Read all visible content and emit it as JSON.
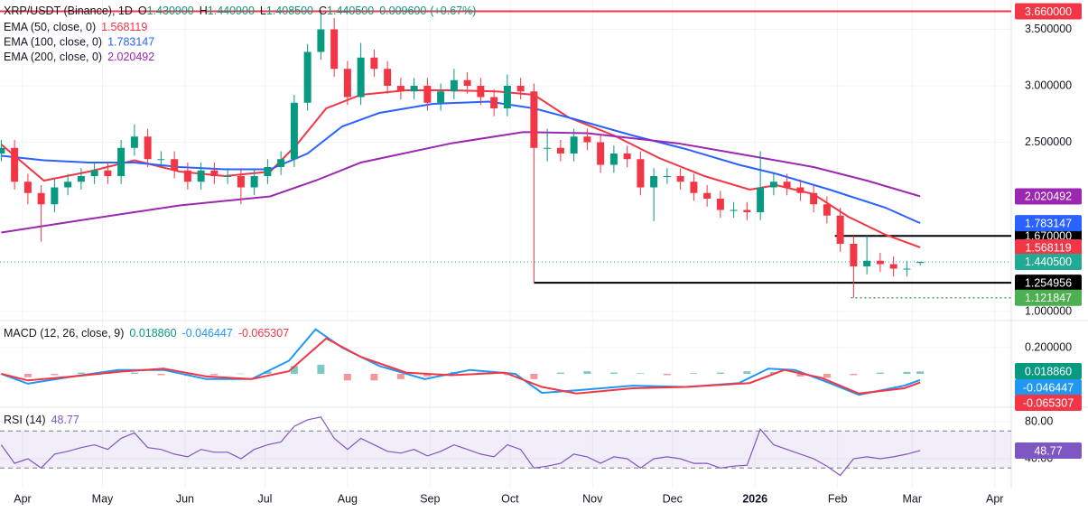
{
  "chart_data": {
    "type": "candlestick",
    "symbol": "XRP/USDT (Binance), 1D",
    "ohlc": [
      {
        "key": "O",
        "value": {
          "value": 1.4309,
          "label": "1.430900"
        }
      },
      {
        "key": "H",
        "value": {
          "value": 1.4409,
          "label": "1.440900"
        }
      },
      {
        "key": "L",
        "value": {
          "value": 1.4085,
          "label": "1.408500"
        }
      },
      {
        "key": "C",
        "value": {
          "value": 1.4405,
          "label": "1.440500"
        }
      }
    ],
    "change": {
      "value": 0.0096,
      "label": "0.009600"
    },
    "change_pct": {
      "value": 0.67,
      "label": "(+0.67%)"
    },
    "up_color": "#089981",
    "down_color": "#f23645",
    "xlim": [
      -8.47,
      369.5
    ],
    "xticks": [
      {
        "value": 0,
        "label": "Apr"
      },
      {
        "value": 30,
        "label": "May"
      },
      {
        "value": 61,
        "label": "Jun"
      },
      {
        "value": 91,
        "label": "Jul"
      },
      {
        "value": 122,
        "label": "Aug"
      },
      {
        "value": 153,
        "label": "Sep"
      },
      {
        "value": 183,
        "label": "Oct"
      },
      {
        "value": 214,
        "label": "Nov"
      },
      {
        "value": 244,
        "label": "Dec"
      },
      {
        "value": 275,
        "label": "2026",
        "bold": true
      },
      {
        "value": 306,
        "label": "Feb"
      },
      {
        "value": 334,
        "label": "Mar"
      },
      {
        "value": 365,
        "label": "Apr"
      }
    ],
    "ylim": [
      0.92,
      3.76
    ],
    "yticks": [
      {
        "value": 1.0,
        "label": "1.000000"
      },
      {
        "value": 2.5,
        "label": "2.500000"
      },
      {
        "value": 3.0,
        "label": "3.000000"
      },
      {
        "value": 3.5,
        "label": "3.500000"
      }
    ],
    "grid": true,
    "x": [
      -8,
      -3,
      2,
      7,
      12,
      17,
      22,
      27,
      32,
      37,
      42,
      47,
      52,
      57,
      62,
      67,
      72,
      77,
      82,
      87,
      92,
      97,
      102,
      107,
      112,
      117,
      122,
      127,
      132,
      137,
      142,
      147,
      152,
      157,
      162,
      167,
      172,
      177,
      182,
      187,
      192,
      197,
      202,
      207,
      212,
      217,
      222,
      227,
      232,
      237,
      242,
      247,
      252,
      257,
      262,
      267,
      272,
      277,
      282,
      287,
      292,
      297,
      302,
      307,
      312,
      317,
      322,
      327,
      332,
      337
    ],
    "open": [
      2.4,
      2.45,
      2.15,
      2.05,
      1.95,
      2.1,
      2.15,
      2.2,
      2.25,
      2.2,
      2.45,
      2.55,
      2.35,
      2.35,
      2.25,
      2.15,
      2.25,
      2.2,
      2.2,
      2.1,
      2.2,
      2.28,
      2.35,
      2.85,
      3.3,
      3.5,
      3.15,
      2.9,
      3.25,
      3.15,
      3.0,
      2.95,
      3.0,
      2.85,
      2.95,
      3.05,
      3.0,
      2.9,
      2.8,
      3.0,
      2.95,
      2.45,
      2.45,
      2.4,
      2.55,
      2.5,
      2.3,
      2.4,
      2.35,
      2.1,
      2.2,
      2.2,
      2.15,
      2.05,
      2.0,
      1.9,
      1.9,
      1.88,
      2.1,
      2.15,
      2.1,
      2.05,
      1.95,
      1.85,
      1.6,
      1.4,
      1.45,
      1.42,
      1.38,
      1.4309
    ],
    "high": [
      2.52,
      2.52,
      2.22,
      2.12,
      2.17,
      2.22,
      2.27,
      2.32,
      2.32,
      2.52,
      2.66,
      2.62,
      2.42,
      2.42,
      2.32,
      2.32,
      2.32,
      2.27,
      2.27,
      2.27,
      2.35,
      2.42,
      2.92,
      3.37,
      3.66,
      3.6,
      3.22,
      3.38,
      3.32,
      3.22,
      3.07,
      3.07,
      3.07,
      3.02,
      3.15,
      3.12,
      3.07,
      2.97,
      3.1,
      3.07,
      3.02,
      2.62,
      2.52,
      2.62,
      2.62,
      2.57,
      2.47,
      2.47,
      2.42,
      2.27,
      2.27,
      2.27,
      2.22,
      2.12,
      2.07,
      1.97,
      1.97,
      2.42,
      2.22,
      2.22,
      2.17,
      2.12,
      2.02,
      1.92,
      1.67,
      1.67,
      1.52,
      1.49,
      1.45,
      1.4409
    ],
    "low": [
      2.33,
      2.08,
      1.95,
      1.62,
      1.88,
      2.03,
      2.08,
      2.13,
      2.13,
      2.13,
      2.38,
      2.28,
      2.28,
      2.18,
      2.08,
      2.08,
      2.13,
      2.13,
      1.95,
      2.03,
      2.13,
      2.21,
      2.28,
      2.78,
      3.23,
      3.08,
      2.83,
      2.83,
      3.08,
      2.93,
      2.88,
      2.88,
      2.78,
      2.78,
      2.88,
      2.93,
      2.83,
      2.73,
      2.73,
      2.88,
      1.254956,
      2.33,
      2.33,
      2.33,
      2.43,
      2.23,
      2.23,
      2.28,
      2.03,
      1.8,
      2.13,
      2.08,
      1.98,
      1.93,
      1.83,
      1.83,
      1.81,
      1.81,
      2.03,
      2.03,
      1.98,
      1.88,
      1.78,
      1.53,
      1.121847,
      1.33,
      1.35,
      1.31,
      1.31,
      1.4085
    ],
    "close": [
      2.45,
      2.15,
      2.05,
      1.95,
      2.1,
      2.15,
      2.2,
      2.25,
      2.2,
      2.45,
      2.55,
      2.35,
      2.35,
      2.25,
      2.15,
      2.25,
      2.2,
      2.2,
      2.1,
      2.2,
      2.28,
      2.35,
      2.85,
      3.3,
      3.5,
      3.15,
      2.9,
      3.25,
      3.15,
      3.0,
      2.95,
      3.0,
      2.85,
      2.95,
      3.05,
      3.0,
      2.9,
      2.8,
      3.0,
      2.95,
      2.45,
      2.45,
      2.4,
      2.55,
      2.5,
      2.3,
      2.4,
      2.35,
      2.1,
      2.2,
      2.2,
      2.15,
      2.05,
      2.0,
      1.9,
      1.9,
      1.88,
      2.1,
      2.15,
      2.1,
      2.05,
      1.95,
      1.85,
      1.6,
      1.4,
      1.45,
      1.42,
      1.38,
      1.38,
      1.4405
    ],
    "series": [
      {
        "name": "EMA (50, close, 0)",
        "color": "#f23645",
        "x": [
          -8,
          8,
          25,
          42,
          59,
          76,
          93,
          103,
          114,
          127,
          144,
          161,
          178,
          192,
          205,
          222,
          239,
          256,
          273,
          283,
          297,
          310,
          324,
          337
        ],
        "values": [
          2.48,
          2.16,
          2.24,
          2.34,
          2.24,
          2.2,
          2.24,
          2.48,
          2.8,
          2.92,
          2.96,
          2.96,
          2.95,
          2.92,
          2.72,
          2.56,
          2.36,
          2.2,
          2.08,
          2.12,
          2.04,
          1.84,
          1.68,
          1.568119
        ]
      },
      {
        "name": "EMA (100, close, 0)",
        "color": "#2962ff",
        "x": [
          -8,
          8,
          25,
          42,
          59,
          76,
          93,
          107,
          120,
          134,
          154,
          175,
          192,
          208,
          229,
          249,
          269,
          283,
          303,
          324,
          337
        ],
        "values": [
          2.38,
          2.34,
          2.32,
          2.32,
          2.28,
          2.26,
          2.26,
          2.4,
          2.64,
          2.76,
          2.84,
          2.86,
          2.8,
          2.7,
          2.56,
          2.44,
          2.3,
          2.22,
          2.08,
          1.92,
          1.783147
        ]
      },
      {
        "name": "EMA (200, close, 0)",
        "color": "#9c27b0",
        "x": [
          -8,
          25,
          59,
          93,
          110,
          127,
          161,
          188,
          212,
          246,
          273,
          297,
          317,
          337
        ],
        "values": [
          1.7,
          1.82,
          1.94,
          2.02,
          2.16,
          2.32,
          2.49,
          2.59,
          2.58,
          2.49,
          2.38,
          2.28,
          2.16,
          2.020492
        ]
      }
    ],
    "levels": [
      {
        "value": 3.66,
        "label": "3.660000",
        "color": "#f23645",
        "style": "solid",
        "start": -8.47
      },
      {
        "value": 1.67,
        "label": "1.670000",
        "color": "#000000",
        "style": "solid",
        "start": 305
      },
      {
        "value": 1.254956,
        "label": "1.254956",
        "color": "#000000",
        "style": "solid",
        "start": 192
      },
      {
        "value": 1.121847,
        "label": "1.121847",
        "color": "#4caf50",
        "style": "dotted",
        "start": 311
      }
    ],
    "last_price": {
      "value": 1.4405,
      "label": "1.440500",
      "color": "#22ab94"
    },
    "macd": {
      "title": "MACD (12, 26, close, 9)",
      "ylim": [
        -0.248,
        0.393
      ],
      "yticks": [
        {
          "value": 0.2,
          "label": "0.200000"
        }
      ],
      "histogram": {
        "color_up": "#26a69a",
        "color_down": "#ef5350",
        "x": [
          -8,
          2,
          12,
          22,
          32,
          42,
          52,
          62,
          72,
          82,
          92,
          102,
          112,
          122,
          132,
          142,
          152,
          162,
          172,
          182,
          192,
          202,
          212,
          222,
          232,
          242,
          252,
          262,
          272,
          282,
          292,
          302,
          312,
          322,
          332,
          337
        ],
        "values": [
          0,
          -0.025,
          -0.01,
          0.01,
          0.015,
          0.01,
          -0.01,
          -0.015,
          -0.01,
          0.002,
          0.02,
          0.06,
          0.07,
          -0.05,
          -0.05,
          -0.04,
          -0.02,
          0.015,
          0.01,
          -0.01,
          -0.04,
          0.01,
          0.02,
          0.01,
          0.005,
          -0.01,
          0.005,
          0.01,
          0.02,
          0.015,
          -0.02,
          -0.03,
          -0.01,
          0.01,
          0.015,
          0.01886
        ],
        "last_label": "0.018860",
        "tag_color": "#089981"
      },
      "macd_line": {
        "color": "#2196f3",
        "x": [
          -8,
          2,
          19,
          36,
          53,
          69,
          86,
          100,
          110,
          120,
          134,
          151,
          168,
          185,
          195,
          208,
          229,
          249,
          269,
          280,
          290,
          303,
          314,
          331,
          337
        ],
        "values": [
          0,
          -0.075,
          -0.02,
          0.03,
          0.03,
          -0.04,
          -0.04,
          0.1,
          0.34,
          0.2,
          0.06,
          -0.04,
          0.03,
          0,
          -0.145,
          -0.125,
          -0.09,
          -0.1,
          -0.07,
          0.04,
          0.03,
          -0.07,
          -0.16,
          -0.09,
          -0.046447
        ],
        "last_label": "-0.046447"
      },
      "signal_line": {
        "color": "#f23645",
        "x": [
          -8,
          2,
          19,
          36,
          53,
          69,
          86,
          100,
          114,
          127,
          144,
          161,
          181,
          195,
          208,
          229,
          249,
          273,
          286,
          300,
          314,
          331,
          337
        ],
        "values": [
          0,
          -0.05,
          -0.02,
          0.015,
          0.04,
          -0.02,
          -0.04,
          0.02,
          0.27,
          0.13,
          0.01,
          -0.01,
          0.01,
          -0.1,
          -0.15,
          -0.11,
          -0.1,
          -0.07,
          0.03,
          -0.03,
          -0.15,
          -0.11,
          -0.065307
        ],
        "last_label": "-0.065307"
      }
    },
    "rsi": {
      "title": "RSI (14)",
      "color": "#7e57c2",
      "ylim": [
        8.8,
        94.6
      ],
      "yticks": [
        {
          "value": 40,
          "label": "40.00"
        },
        {
          "value": 80,
          "label": "80.00"
        }
      ],
      "bands": [
        30,
        70
      ],
      "values": [
        55,
        35,
        40,
        30,
        45,
        48,
        52,
        55,
        50,
        62,
        68,
        52,
        50,
        45,
        42,
        50,
        47,
        47,
        40,
        50,
        55,
        58,
        75,
        82,
        85,
        62,
        50,
        62,
        55,
        48,
        46,
        50,
        43,
        48,
        55,
        50,
        45,
        42,
        55,
        50,
        30,
        32,
        35,
        45,
        42,
        35,
        42,
        40,
        30,
        40,
        42,
        40,
        35,
        35,
        30,
        32,
        33,
        72,
        55,
        50,
        45,
        40,
        32,
        22,
        40,
        42,
        40,
        42,
        45,
        48.77
      ]
    }
  }
}
